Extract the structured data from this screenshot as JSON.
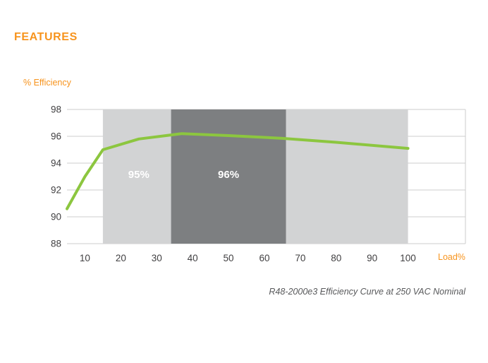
{
  "page": {
    "heading": "FEATURES",
    "caption": "R48-2000e3 Efficiency Curve at 250 VAC Nominal"
  },
  "chart_data": {
    "type": "line",
    "title": "",
    "ylabel": "% Efficiency",
    "xlabel": "Load%",
    "x_ticks": [
      10,
      20,
      30,
      40,
      50,
      60,
      70,
      80,
      90,
      100
    ],
    "y_ticks": [
      88,
      90,
      92,
      94,
      96,
      98
    ],
    "xlim": [
      5,
      116
    ],
    "ylim": [
      88,
      98
    ],
    "grid": "horizontal",
    "legend": "none",
    "series": [
      {
        "name": "efficiency",
        "color": "#8CC63F",
        "x": [
          5,
          10,
          15,
          25,
          37,
          50,
          65,
          80,
          100
        ],
        "y": [
          90.6,
          93.0,
          95.0,
          95.8,
          96.2,
          96.05,
          95.85,
          95.55,
          95.1
        ]
      }
    ],
    "bands": [
      {
        "label": "95%",
        "from": 15,
        "to": 100,
        "color": "#D2D3D4",
        "label_x": 25,
        "label_y": 92.9
      },
      {
        "label": "96%",
        "from": 34,
        "to": 66,
        "color": "#7D7F81",
        "label_x": 50,
        "label_y": 92.9
      }
    ],
    "colors": {
      "accent_orange": "#F7941E",
      "line_green": "#8CC63F",
      "grid": "#CCCCCC",
      "tick_text": "#414042",
      "caption_text": "#58595B",
      "band_label": "#FFFFFF"
    }
  }
}
